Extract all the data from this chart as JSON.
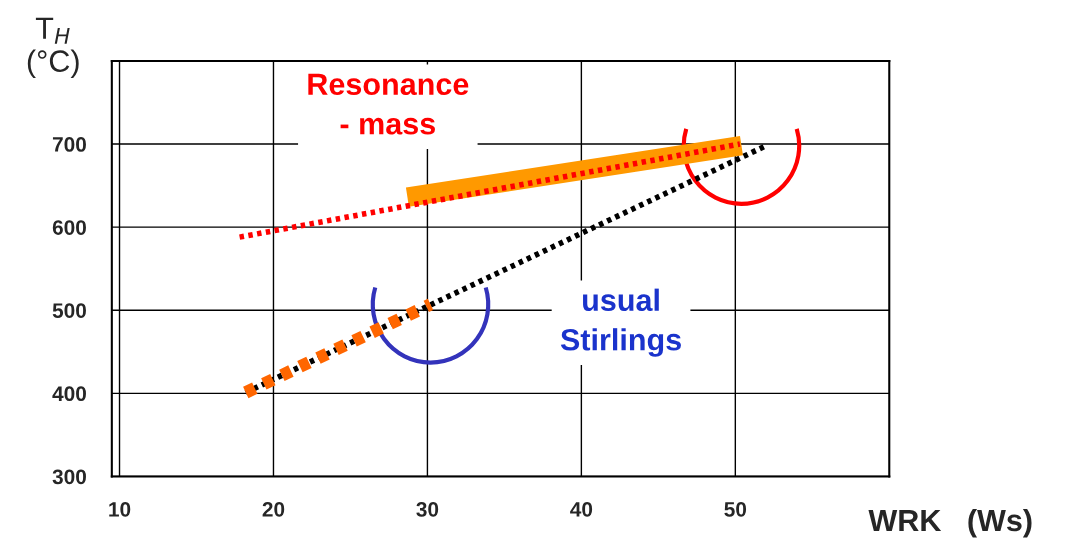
{
  "chart_data": {
    "type": "line",
    "xlabel": "WRK   (Ws)",
    "ylabel": "T$_{H}$\n(°C)",
    "series": [
      {
        "color": "#ff0000",
        "line_style": "dotted",
        "x": [
          17.8,
          50.3
        ],
        "values": [
          588,
          700
        ]
      },
      {
        "color": "#ff9900",
        "line_style": "solid",
        "x": [
          28.7,
          50.4
        ],
        "values": [
          636,
          698
        ]
      },
      {
        "color": "#000000",
        "line_style": "dotted",
        "x": [
          18.2,
          52
        ],
        "values": [
          401,
          698
        ]
      },
      {
        "color": "#ff6600",
        "line_style": "dotted",
        "x": [
          18.2,
          30.2
        ],
        "values": [
          401,
          507
        ]
      }
    ],
    "annotations": [
      "Resonance\n- mass",
      "usual\nStirlings"
    ],
    "xlim": [
      9.5,
      60
    ],
    "xticks": [
      10,
      20,
      30,
      40,
      50
    ],
    "ylim": [
      300,
      800
    ],
    "yticks": [
      300,
      400,
      500,
      600,
      700,
      {
        "value": 800,
        "label": null
      }
    ],
    "grid": true,
    "marker": "none"
  }
}
